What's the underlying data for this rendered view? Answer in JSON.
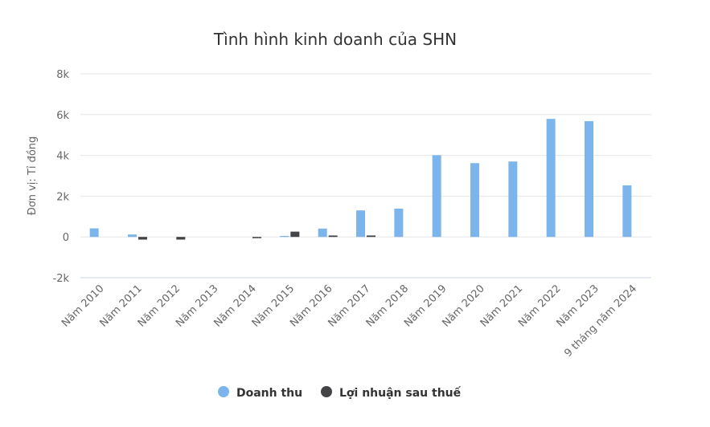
{
  "chart_data": {
    "type": "bar",
    "title": "Tình hình kinh doanh của SHN",
    "xlabel": "",
    "ylabel": "Đơn vị: Tỉ đồng",
    "ylim": [
      -2000,
      8000
    ],
    "yticks": [
      -2000,
      0,
      2000,
      4000,
      6000,
      8000
    ],
    "ytick_labels": [
      "-2k",
      "0",
      "2k",
      "4k",
      "6k",
      "8k"
    ],
    "grid": true,
    "legend": "bottom",
    "categories": [
      "Năm 2010",
      "Năm 2011",
      "Năm 2012",
      "Năm 2013",
      "Năm 2014",
      "Năm 2015",
      "Năm 2016",
      "Năm 2017",
      "Năm 2018",
      "Năm 2019",
      "Năm 2020",
      "Năm 2021",
      "Năm 2022",
      "Năm 2023",
      "9 tháng năm 2024"
    ],
    "series": [
      {
        "name": "Doanh thu",
        "color": "#7cb5ec",
        "values": [
          420,
          120,
          0,
          0,
          0,
          50,
          410,
          1300,
          1390,
          4010,
          3620,
          3700,
          5790,
          5680,
          2530
        ]
      },
      {
        "name": "Lợi nhuận sau thuế",
        "color": "#434348",
        "values": [
          0,
          -130,
          -130,
          0,
          -60,
          260,
          70,
          70,
          0,
          0,
          0,
          0,
          0,
          0,
          0
        ]
      }
    ]
  }
}
